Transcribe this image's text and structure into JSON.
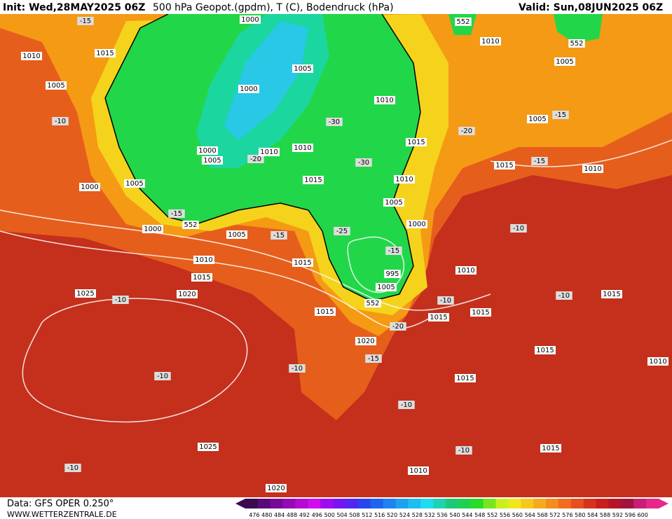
{
  "header": {
    "init": "Init: Wed,28MAY2025 06Z",
    "title": "500 hPa Geopot.(gpdm), T (C), Bodendruck (hPa)",
    "valid": "Valid: Sun,08JUN2025 06Z"
  },
  "map": {
    "labels": [
      "-15",
      "1010",
      "1015",
      "1005",
      "-10",
      "1000",
      "1005",
      "1000",
      "-15",
      "552",
      "1005",
      "-15",
      "1010",
      "1015",
      "1015",
      "1025",
      "-10",
      "1020",
      "1015",
      "-25",
      "-15",
      "995",
      "1005",
      "552",
      "1000",
      "1005",
      "1000",
      "1010",
      "-30",
      "1000",
      "1005",
      "-20",
      "1010",
      "1010",
      "1015",
      "-30",
      "1010",
      "1005",
      "1000",
      "1015",
      "552",
      "1010",
      "552",
      "1005",
      "1005",
      "-15",
      "-20",
      "1015",
      "-15",
      "1010",
      "-10",
      "1010",
      "-10",
      "1015",
      "1015",
      "-20",
      "1020",
      "-15",
      "-10",
      "-10",
      "1015",
      "-10",
      "-10",
      "1015",
      "1015",
      "1010",
      "1025",
      "-10",
      "1015",
      "-10",
      "1010",
      "1020"
    ]
  },
  "colorbar": {
    "ticks": [
      "476",
      "480",
      "484",
      "488",
      "492",
      "496",
      "500",
      "504",
      "508",
      "512",
      "516",
      "520",
      "524",
      "528",
      "532",
      "536",
      "540",
      "544",
      "548",
      "552",
      "556",
      "560",
      "564",
      "568",
      "572",
      "576",
      "580",
      "584",
      "588",
      "592",
      "596",
      "600"
    ]
  },
  "footer": {
    "data": "Data: GFS OPER 0.250°",
    "site": "WWW.WETTERZENTRALE.DE"
  }
}
